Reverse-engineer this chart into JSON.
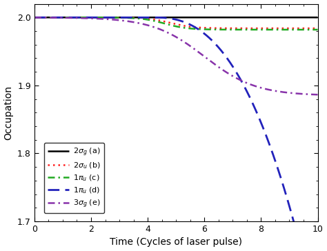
{
  "title": "",
  "xlabel": "Time (Cycles of laser pulse)",
  "ylabel": "Occupation",
  "xlim": [
    0,
    10
  ],
  "ylim": [
    1.7,
    2.02
  ],
  "yticks": [
    1.7,
    1.8,
    1.9,
    2.0
  ],
  "xticks": [
    0,
    2,
    4,
    6,
    8,
    10
  ],
  "legend_entries": [
    {
      "label": "$2\\sigma_g$ (a)",
      "color": "#000000",
      "linestyle": "solid",
      "linewidth": 1.8
    },
    {
      "label": "$2\\sigma_u$ (b)",
      "color": "#ff2222",
      "linestyle": "dotted",
      "linewidth": 1.8
    },
    {
      "label": "$1\\pi_u$ (c)",
      "color": "#22aa22",
      "linestyle": "dashdot",
      "linewidth": 1.8
    },
    {
      "label": "$1\\pi_u$ (d)",
      "color": "#2222bb",
      "linestyle": "dashed",
      "linewidth": 2.0
    },
    {
      "label": "$3\\sigma_g$ (e)",
      "color": "#8833aa",
      "linestyle": "dashdot",
      "linewidth": 1.8
    }
  ],
  "background_color": "#ffffff"
}
